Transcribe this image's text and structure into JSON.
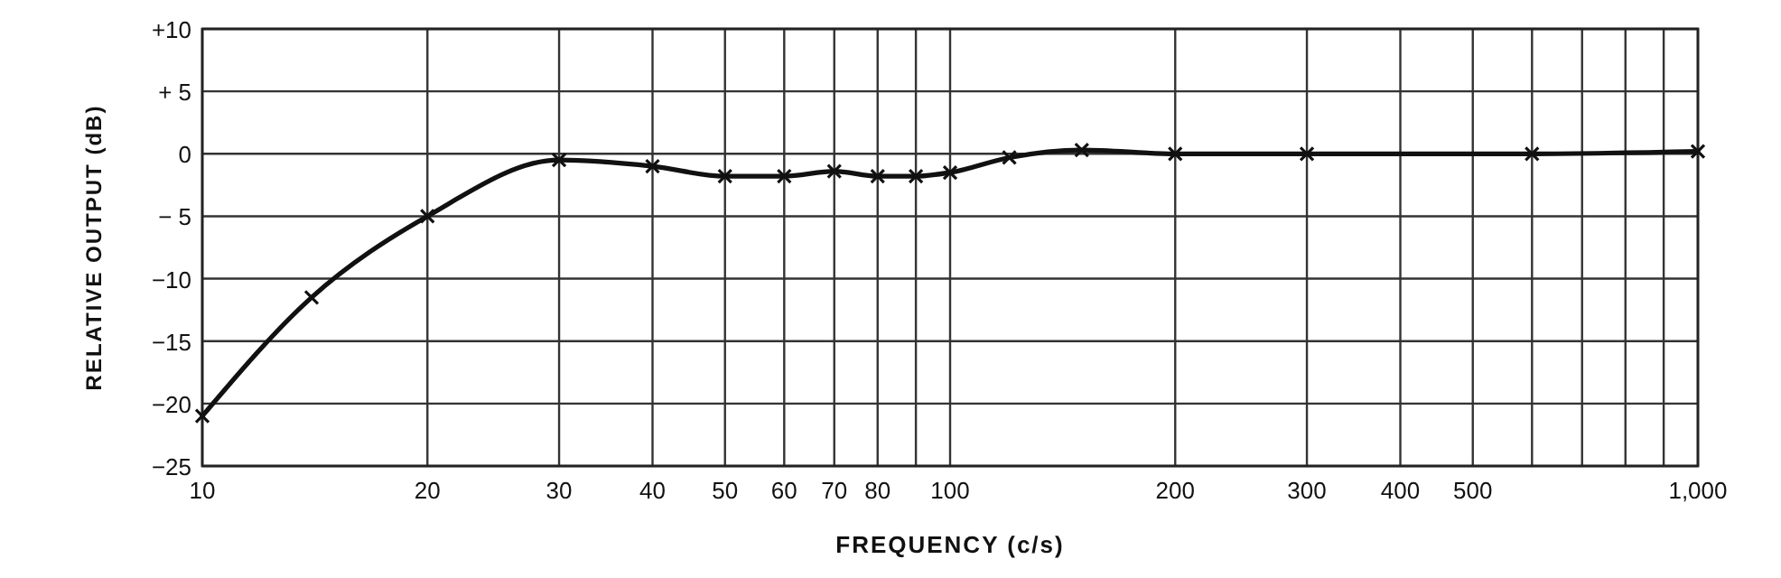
{
  "chart_data": {
    "type": "line",
    "xlabel": "FREQUENCY (c/s)",
    "ylabel": "RELATIVE OUTPUT (dB)",
    "log": "x",
    "grid": true,
    "marker": "cross",
    "line_style": "solid",
    "xlim": [
      10,
      1000
    ],
    "ylim": [
      -25,
      10
    ],
    "xticks": [
      10,
      20,
      30,
      40,
      50,
      60,
      70,
      80,
      {
        "value": 90,
        "label": null
      },
      100,
      200,
      300,
      400,
      500,
      {
        "value": 600,
        "label": null
      },
      {
        "value": 700,
        "label": null
      },
      {
        "value": 800,
        "label": null
      },
      {
        "value": 900,
        "label": null
      },
      {
        "value": 1000,
        "label": "1,000"
      }
    ],
    "yticks": [
      {
        "value": -25,
        "label": "−25"
      },
      {
        "value": -20,
        "label": "−20"
      },
      {
        "value": -15,
        "label": "−15"
      },
      {
        "value": -10,
        "label": "−10"
      },
      {
        "value": -5,
        "label": "− 5"
      },
      0,
      {
        "value": 5,
        "label": "+ 5"
      },
      {
        "value": 10,
        "label": "+10"
      }
    ],
    "series": [
      {
        "color": "#111111",
        "x": [
          10,
          14,
          20,
          30,
          40,
          50,
          60,
          70,
          80,
          90,
          100,
          120,
          150,
          200,
          300,
          600,
          1000
        ],
        "values": [
          -21,
          -11.5,
          -5,
          -0.5,
          -1,
          -1.8,
          -1.8,
          -1.4,
          -1.8,
          -1.8,
          -1.5,
          -0.3,
          0.3,
          0,
          0,
          0,
          0.2
        ]
      }
    ]
  }
}
